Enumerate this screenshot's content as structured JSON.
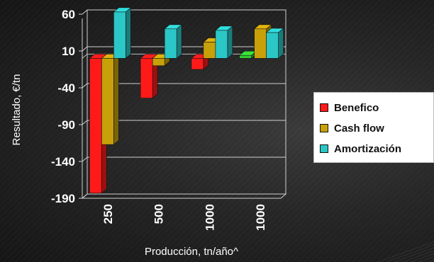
{
  "chart_data": {
    "type": "bar",
    "categories": [
      "250",
      "500",
      "1000",
      "1000"
    ],
    "series": [
      {
        "name": "Benefico",
        "values": [
          -183,
          -54,
          -15,
          0
        ],
        "color": "#ff1a1a"
      },
      {
        "name": "Cash flow",
        "values": [
          -117,
          -10,
          22,
          40
        ],
        "color": "#c8a10a"
      },
      {
        "name": "Amortización",
        "values": [
          63,
          40,
          38,
          35
        ],
        "color": "#2bc6c6"
      }
    ],
    "extra_bars": [
      {
        "category_index": 3,
        "value": 4,
        "color": "#33cc33"
      }
    ],
    "yticks": [
      60,
      10,
      -40,
      -90,
      -140,
      -190
    ],
    "ylim": [
      -190,
      65
    ],
    "ylabel": "Resultado, €/tn",
    "xlabel": "Producción, tn/año^",
    "legend_position": "right",
    "grid": true,
    "three_d": true
  }
}
